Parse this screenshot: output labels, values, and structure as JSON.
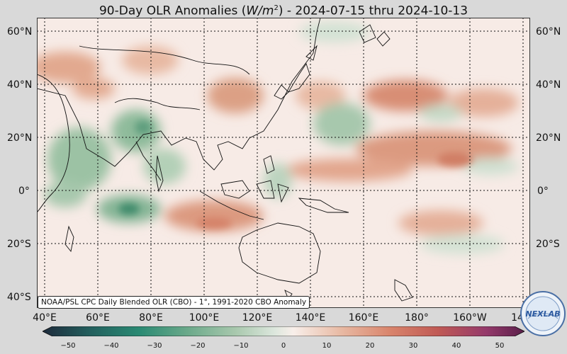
{
  "header": {
    "title_prefix": "90-Day OLR Anomalies (",
    "title_units": "W/m",
    "title_sup": "2",
    "title_suffix": ") - 2024-07-15 thru 2024-10-13"
  },
  "axes": {
    "lat_labels": [
      "60°N",
      "40°N",
      "20°N",
      "0°",
      "20°S",
      "40°S"
    ],
    "lon_labels": [
      "40°E",
      "60°E",
      "80°E",
      "100°E",
      "120°E",
      "140°E",
      "160°E",
      "180°",
      "160°W",
      "14"
    ]
  },
  "source_note": "NOAA/PSL CPC Daily Blended OLR (CBO) - 1°, 1991-2020 CBO Anomaly",
  "colorbar": {
    "ticks": [
      "−50",
      "−40",
      "−30",
      "−20",
      "−10",
      "0",
      "10",
      "20",
      "30",
      "40",
      "50"
    ],
    "colors": [
      "#1e2b3c",
      "#23605e",
      "#2a8a73",
      "#6aa98a",
      "#a8c8ad",
      "#dbe6dc",
      "#f8efea",
      "#e8b9a3",
      "#d9856c",
      "#c05a55",
      "#953a6b",
      "#5a1f4a"
    ]
  },
  "logo": {
    "text": "NEXLAB",
    "icon": "nexlab-globe-icon"
  }
}
